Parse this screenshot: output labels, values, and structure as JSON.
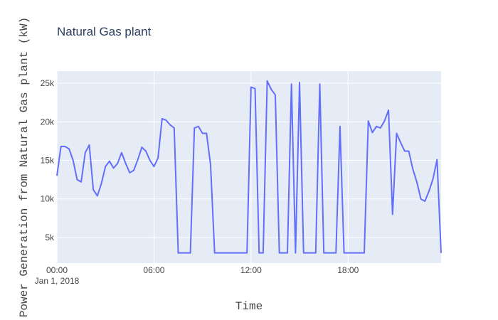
{
  "chart_data": {
    "type": "line",
    "title": "Natural Gas plant",
    "x_label": "Time",
    "y_label": "Power Generation from Natural Gas plant (kW)",
    "x_date_label": "Jan 1, 2018",
    "x": [
      "00:00",
      "00:15",
      "00:30",
      "00:45",
      "01:00",
      "01:15",
      "01:30",
      "01:45",
      "02:00",
      "02:15",
      "02:30",
      "02:45",
      "03:00",
      "03:15",
      "03:30",
      "03:45",
      "04:00",
      "04:15",
      "04:30",
      "04:45",
      "05:00",
      "05:15",
      "05:30",
      "05:45",
      "06:00",
      "06:15",
      "06:30",
      "06:45",
      "07:00",
      "07:15",
      "07:30",
      "07:45",
      "08:00",
      "08:15",
      "08:30",
      "08:45",
      "09:00",
      "09:15",
      "09:30",
      "09:45",
      "10:00",
      "10:15",
      "10:30",
      "10:45",
      "11:00",
      "11:15",
      "11:30",
      "11:45",
      "12:00",
      "12:15",
      "12:30",
      "12:45",
      "13:00",
      "13:15",
      "13:30",
      "13:45",
      "14:00",
      "14:15",
      "14:30",
      "14:45",
      "15:00",
      "15:15",
      "15:30",
      "15:45",
      "16:00",
      "16:15",
      "16:30",
      "16:45",
      "17:00",
      "17:15",
      "17:30",
      "17:45",
      "18:00",
      "18:15",
      "18:30",
      "18:45",
      "19:00",
      "19:15",
      "19:30",
      "19:45",
      "20:00",
      "20:15",
      "20:30",
      "20:45",
      "21:00",
      "21:15",
      "21:30",
      "21:45",
      "22:00",
      "22:15",
      "22:30",
      "22:45",
      "23:00",
      "23:15",
      "23:30",
      "23:45"
    ],
    "series": [
      {
        "name": "Natural Gas plant",
        "color": "#636efa",
        "values": [
          13000,
          16800,
          16800,
          16500,
          15000,
          12500,
          12200,
          16000,
          17000,
          11200,
          10400,
          12000,
          14200,
          14900,
          14000,
          14600,
          16000,
          14600,
          13400,
          13700,
          15100,
          16700,
          16200,
          15000,
          14200,
          15300,
          20400,
          20200,
          19600,
          19200,
          3000,
          3000,
          3000,
          3000,
          19200,
          19400,
          18500,
          18500,
          14400,
          3000,
          3000,
          3000,
          3000,
          3000,
          3000,
          3000,
          3000,
          3000,
          24500,
          24300,
          3000,
          3000,
          25300,
          24200,
          23500,
          3000,
          3000,
          3000,
          24900,
          3000,
          25100,
          3000,
          3000,
          3000,
          3000,
          24900,
          3000,
          3000,
          3000,
          3000,
          19400,
          3000,
          3000,
          3000,
          3000,
          3000,
          3000,
          20100,
          18600,
          19400,
          19200,
          20100,
          21500,
          8000,
          18500,
          17300,
          16200,
          16200,
          13900,
          12200,
          10000,
          9700,
          11000,
          12600,
          15100,
          3000
        ]
      }
    ],
    "xlim": [
      "00:00",
      "23:45"
    ],
    "xticks": [
      "00:00",
      "06:00",
      "12:00",
      "18:00"
    ],
    "ylim": [
      1680,
      26570
    ],
    "yticks": [
      {
        "value": 5000,
        "label": "5k"
      },
      {
        "value": 10000,
        "label": "10k"
      },
      {
        "value": 15000,
        "label": "15k"
      },
      {
        "value": 20000,
        "label": "20k"
      },
      {
        "value": 25000,
        "label": "25k"
      }
    ],
    "grid": true
  }
}
